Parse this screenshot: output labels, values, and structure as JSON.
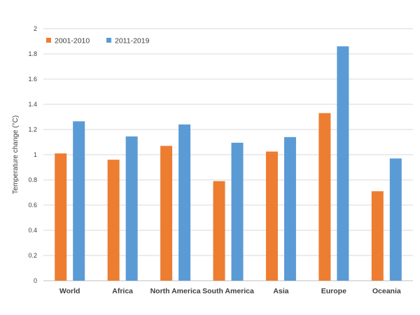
{
  "chart_data": {
    "type": "bar",
    "title": "",
    "xlabel": "",
    "ylabel": "Temperature change (°C)",
    "ylim": [
      0,
      2
    ],
    "yticks": [
      "0",
      "0.2",
      "0.4",
      "0.6",
      "0.8",
      "1",
      "1.2",
      "1.4",
      "1.6",
      "1.8",
      "2"
    ],
    "categories": [
      "World",
      "Africa",
      "North America",
      "South America",
      "Asia",
      "Europe",
      "Oceania"
    ],
    "grid": true,
    "legend_position": "top-left",
    "series": [
      {
        "name": "2001-2010",
        "color": "#ed7d31",
        "values": [
          1.01,
          0.96,
          1.07,
          0.79,
          1.025,
          1.33,
          0.71
        ]
      },
      {
        "name": "2011-2019",
        "color": "#5b9bd5",
        "values": [
          1.265,
          1.145,
          1.24,
          1.095,
          1.14,
          1.86,
          0.97
        ]
      }
    ]
  }
}
